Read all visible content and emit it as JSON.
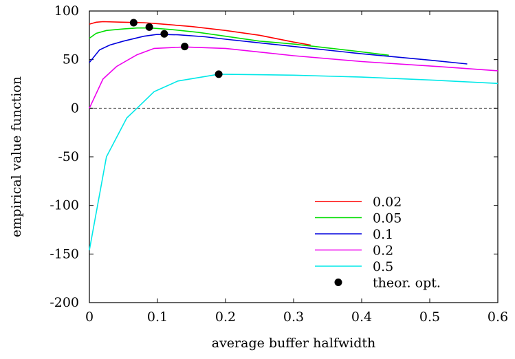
{
  "chart_data": {
    "type": "line",
    "xlabel": "average buffer halfwidth",
    "ylabel": "empirical value function",
    "xlim": [
      0,
      0.6
    ],
    "ylim": [
      -200,
      100
    ],
    "xticks": [
      "0",
      "0.1",
      "0.2",
      "0.3",
      "0.4",
      "0.5",
      "0.6"
    ],
    "yticks": [
      "100",
      "50",
      "0",
      "-50",
      "-100",
      "-150",
      "-200"
    ],
    "xtick_values": [
      0,
      0.1,
      0.2,
      0.3,
      0.4,
      0.5,
      0.6
    ],
    "ytick_values": [
      100,
      50,
      0,
      -50,
      -100,
      -150,
      -200
    ],
    "grid": false,
    "reference_line": {
      "y": 0,
      "style": "dashed"
    },
    "legend_position": "bottom-right",
    "series": [
      {
        "name": "0.02",
        "color": "#ff0000",
        "points": [
          [
            0,
            86.5
          ],
          [
            0.01,
            88.5
          ],
          [
            0.02,
            89
          ],
          [
            0.05,
            88.5
          ],
          [
            0.08,
            88
          ],
          [
            0.1,
            87
          ],
          [
            0.15,
            84
          ],
          [
            0.2,
            80
          ],
          [
            0.25,
            75
          ],
          [
            0.3,
            68
          ],
          [
            0.325,
            65
          ]
        ]
      },
      {
        "name": "0.05",
        "color": "#00dd00",
        "points": [
          [
            0,
            72
          ],
          [
            0.01,
            77
          ],
          [
            0.025,
            80
          ],
          [
            0.05,
            81.5
          ],
          [
            0.07,
            82.5
          ],
          [
            0.09,
            82.5
          ],
          [
            0.12,
            81
          ],
          [
            0.16,
            78
          ],
          [
            0.2,
            74
          ],
          [
            0.25,
            69
          ],
          [
            0.3,
            66
          ],
          [
            0.35,
            62
          ],
          [
            0.4,
            58
          ],
          [
            0.44,
            54.5
          ]
        ]
      },
      {
        "name": "0.1",
        "color": "#0000dd",
        "points": [
          [
            0,
            47
          ],
          [
            0.015,
            60
          ],
          [
            0.03,
            65
          ],
          [
            0.05,
            69
          ],
          [
            0.08,
            74
          ],
          [
            0.1,
            76
          ],
          [
            0.13,
            75.5
          ],
          [
            0.17,
            73.5
          ],
          [
            0.2,
            71
          ],
          [
            0.3,
            63.5
          ],
          [
            0.4,
            56
          ],
          [
            0.5,
            49.5
          ],
          [
            0.555,
            45.5
          ]
        ]
      },
      {
        "name": "0.2",
        "color": "#ee00ee",
        "points": [
          [
            0,
            0
          ],
          [
            0.02,
            30
          ],
          [
            0.04,
            43
          ],
          [
            0.07,
            55
          ],
          [
            0.095,
            61.5
          ],
          [
            0.14,
            63
          ],
          [
            0.2,
            61.5
          ],
          [
            0.3,
            54
          ],
          [
            0.4,
            48
          ],
          [
            0.5,
            43.5
          ],
          [
            0.6,
            38.5
          ]
        ]
      },
      {
        "name": "0.5",
        "color": "#00e8e8",
        "points": [
          [
            0,
            -146
          ],
          [
            0.025,
            -50
          ],
          [
            0.055,
            -10
          ],
          [
            0.07,
            0
          ],
          [
            0.095,
            17
          ],
          [
            0.13,
            28
          ],
          [
            0.19,
            35
          ],
          [
            0.3,
            34
          ],
          [
            0.4,
            32
          ],
          [
            0.5,
            29
          ],
          [
            0.6,
            25.5
          ]
        ]
      }
    ],
    "optima": {
      "name": "theor. opt.",
      "color": "#000000",
      "points": [
        [
          0.065,
          88
        ],
        [
          0.088,
          83.5
        ],
        [
          0.11,
          76.5
        ],
        [
          0.14,
          63.5
        ],
        [
          0.19,
          35
        ]
      ]
    }
  }
}
